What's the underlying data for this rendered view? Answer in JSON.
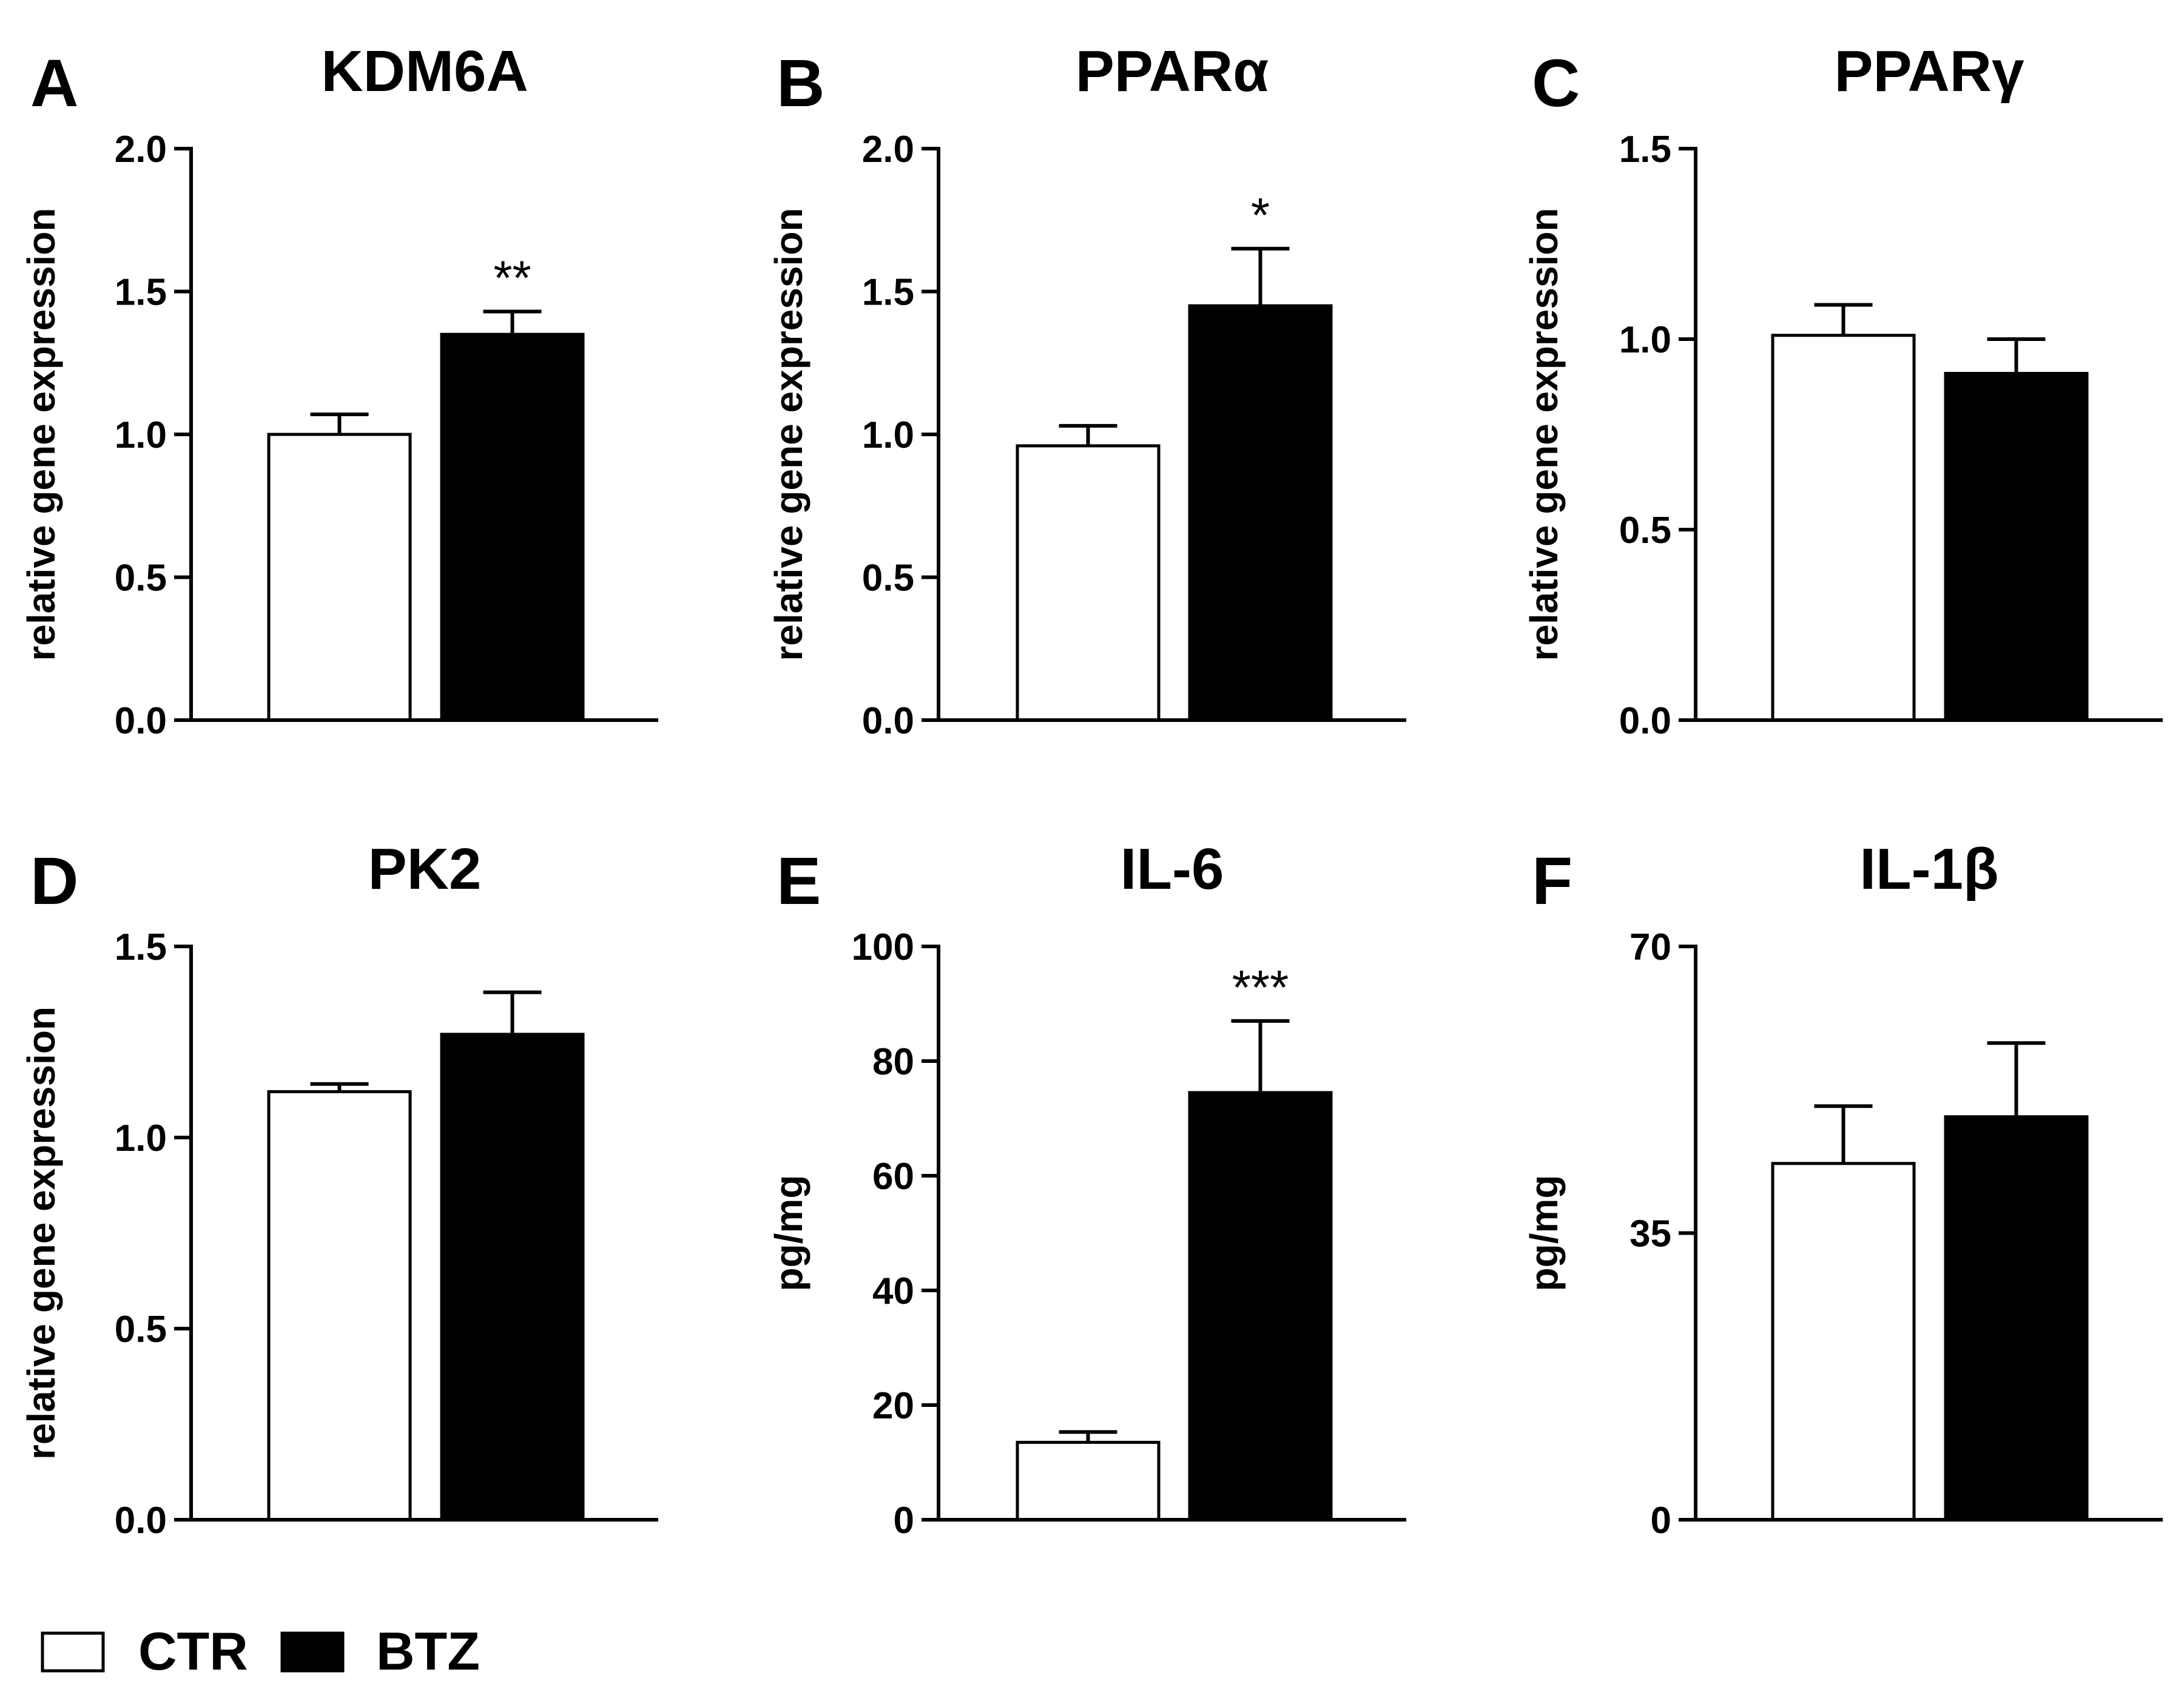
{
  "legend": [
    {
      "name": "CTR",
      "fill": "#ffffff"
    },
    {
      "name": "BTZ",
      "fill": "#000000"
    }
  ],
  "chart_data": [
    {
      "panel": "A",
      "type": "bar",
      "title": "KDM6A",
      "ylabel": "relative gene expression",
      "ylim": [
        0,
        2.0
      ],
      "yticks": [
        "0.0",
        "0.5",
        "1.0",
        "1.5",
        "2.0"
      ],
      "categories": [
        "CTR",
        "BTZ"
      ],
      "series": [
        {
          "name": "mean",
          "values": [
            1.0,
            1.35
          ]
        }
      ],
      "errors": [
        0.07,
        0.08
      ],
      "significance": [
        "",
        "**"
      ]
    },
    {
      "panel": "B",
      "type": "bar",
      "title": "PPARα",
      "ylabel": "relative gene expression",
      "ylim": [
        0,
        2.0
      ],
      "yticks": [
        "0.0",
        "0.5",
        "1.0",
        "1.5",
        "2.0"
      ],
      "categories": [
        "CTR",
        "BTZ"
      ],
      "series": [
        {
          "name": "mean",
          "values": [
            0.96,
            1.45
          ]
        }
      ],
      "errors": [
        0.07,
        0.2
      ],
      "significance": [
        "",
        "*"
      ]
    },
    {
      "panel": "C",
      "type": "bar",
      "title": "PPARγ",
      "ylabel": "relative gene expression",
      "ylim": [
        0,
        1.5
      ],
      "yticks": [
        "0.0",
        "0.5",
        "1.0",
        "1.5"
      ],
      "categories": [
        "CTR",
        "BTZ"
      ],
      "series": [
        {
          "name": "mean",
          "values": [
            1.01,
            0.91
          ]
        }
      ],
      "errors": [
        0.08,
        0.09
      ],
      "significance": [
        "",
        ""
      ]
    },
    {
      "panel": "D",
      "type": "bar",
      "title": "PK2",
      "ylabel": "relative gene expression",
      "ylim": [
        0,
        1.5
      ],
      "yticks": [
        "0.0",
        "0.5",
        "1.0",
        "1.5"
      ],
      "categories": [
        "CTR",
        "BTZ"
      ],
      "series": [
        {
          "name": "mean",
          "values": [
            1.12,
            1.27
          ]
        }
      ],
      "errors": [
        0.02,
        0.11
      ],
      "significance": [
        "",
        ""
      ]
    },
    {
      "panel": "E",
      "type": "bar",
      "title": "IL-6",
      "ylabel": "pg/mg",
      "ylim": [
        0,
        100
      ],
      "yticks": [
        "0",
        "20",
        "40",
        "60",
        "80",
        "100"
      ],
      "categories": [
        "CTR",
        "BTZ"
      ],
      "series": [
        {
          "name": "mean",
          "values": [
            13.5,
            74.5
          ]
        }
      ],
      "errors": [
        1.8,
        12.5
      ],
      "significance": [
        "",
        "***"
      ]
    },
    {
      "panel": "F",
      "type": "bar",
      "title": "IL-1β",
      "ylabel": "pg/mg",
      "ylim": [
        0,
        70
      ],
      "yticks": [
        "0",
        "35",
        "70"
      ],
      "categories": [
        "CTR",
        "BTZ"
      ],
      "series": [
        {
          "name": "mean",
          "values": [
            43.5,
            49.2
          ]
        }
      ],
      "errors": [
        7.0,
        9.0
      ],
      "significance": [
        "",
        ""
      ]
    }
  ]
}
